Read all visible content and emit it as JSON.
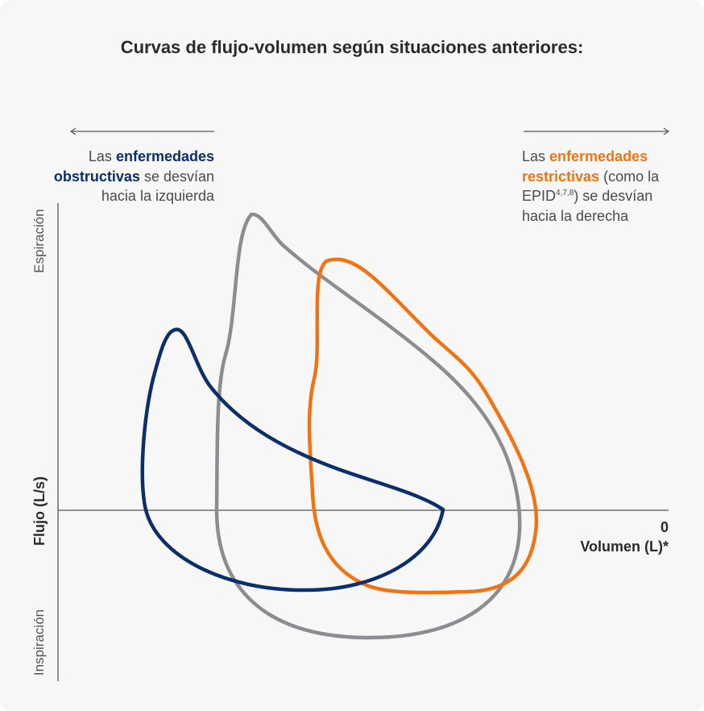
{
  "title": "Curvas de flujo-volumen según situaciones anteriores:",
  "notes": {
    "left": {
      "prefix": "Las ",
      "highlight": "enfermedades obstructivas",
      "suffix": " se desvían hacia la izquierda",
      "direction": "left"
    },
    "right": {
      "prefix": "Las ",
      "highlight": "enfermedades restrictivas",
      "middle": " (como la EPID",
      "superscript": "4,7,8",
      "suffix": ") se desvían hacia la derecha",
      "direction": "right"
    }
  },
  "axes": {
    "y_label": "Flujo (L/s)",
    "y_top_label": "Espiración",
    "y_bottom_label": "Inspiración",
    "x_zero_label": "0",
    "x_label": "Volumen (L)*"
  },
  "curves": [
    {
      "name": "obstructive",
      "color": "#0b2f6b"
    },
    {
      "name": "normal",
      "color": "#8b8d90"
    },
    {
      "name": "restrictive",
      "color": "#f07314"
    }
  ],
  "colors": {
    "background": "#f7f7f7",
    "axis": "#555555",
    "text": "#4a4a4a",
    "title": "#2b2b2b"
  }
}
